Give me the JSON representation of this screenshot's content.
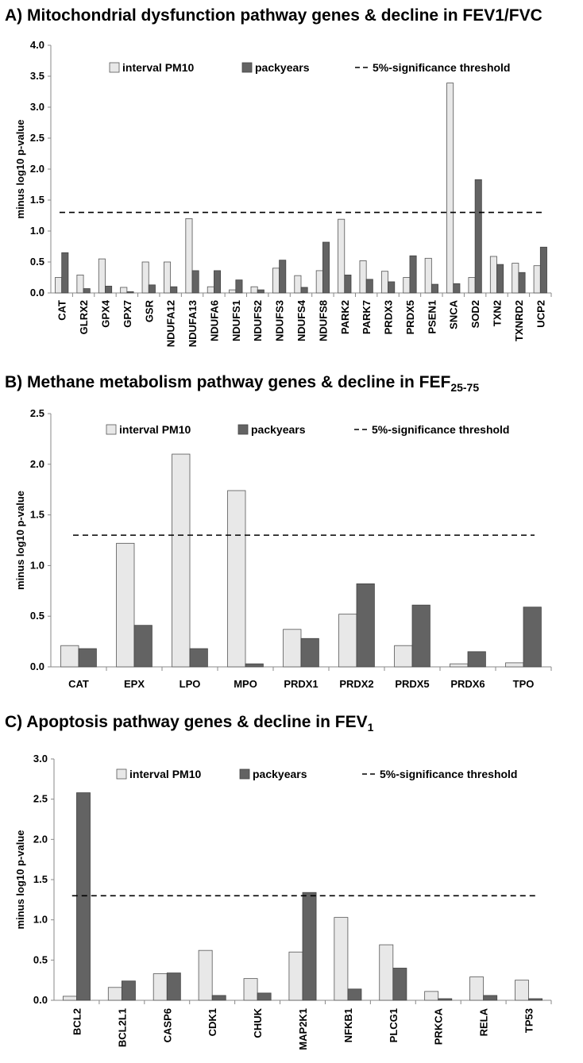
{
  "chart_data": [
    {
      "type": "bar",
      "panel": "A)",
      "title": "Mitochondrial dysfunction pathway genes & decline in FEV1/FVC",
      "ylabel": "minus log10 p-value",
      "ylim": [
        0,
        4.0
      ],
      "yticks": [
        "0.0",
        "0.5",
        "1.0",
        "1.5",
        "2.0",
        "2.5",
        "3.0",
        "3.5",
        "4.0"
      ],
      "grid": false,
      "legend": {
        "placement": "top",
        "entries": [
          "interval PM10",
          "packyears",
          "5%-significance threshold"
        ]
      },
      "threshold": 1.3,
      "categories": [
        "CAT",
        "GLRX2",
        "GPX4",
        "GPX7",
        "GSR",
        "NDUFA12",
        "NDUFA13",
        "NDUFA6",
        "NDUFS1",
        "NDUFS2",
        "NDUFS3",
        "NDUFS4",
        "NDUFS8",
        "PARK2",
        "PARK7",
        "PRDX3",
        "PRDX5",
        "PSEN1",
        "SNCA",
        "SOD2",
        "TXN2",
        "TXNRD2",
        "UCP2"
      ],
      "series": [
        {
          "name": "interval PM10",
          "color": "#e8e8e8",
          "values": [
            0.25,
            0.29,
            0.55,
            0.09,
            0.5,
            0.5,
            1.2,
            0.1,
            0.05,
            0.1,
            0.4,
            0.28,
            0.36,
            1.19,
            0.52,
            0.35,
            0.25,
            0.56,
            3.39,
            0.25,
            0.59,
            0.48,
            0.44
          ]
        },
        {
          "name": "packyears",
          "color": "#636363",
          "values": [
            0.65,
            0.07,
            0.11,
            0.02,
            0.13,
            0.1,
            0.36,
            0.36,
            0.21,
            0.05,
            0.53,
            0.09,
            0.82,
            0.29,
            0.22,
            0.18,
            0.6,
            0.14,
            0.15,
            1.83,
            0.46,
            0.33,
            0.74
          ]
        }
      ]
    },
    {
      "type": "bar",
      "panel": "B)",
      "title": "Methane metabolism pathway genes & decline in FEF",
      "title_sub": "25-75",
      "ylabel": "minus log10 p-value",
      "ylim": [
        0,
        2.5
      ],
      "yticks": [
        "0.0",
        "0.5",
        "1.0",
        "1.5",
        "2.0",
        "2.5"
      ],
      "grid": false,
      "legend": {
        "placement": "top",
        "entries": [
          "interval PM10",
          "packyears",
          "5%-significance threshold"
        ]
      },
      "threshold": 1.3,
      "categories": [
        "CAT",
        "EPX",
        "LPO",
        "MPO",
        "PRDX1",
        "PRDX2",
        "PRDX5",
        "PRDX6",
        "TPO"
      ],
      "series": [
        {
          "name": "interval PM10",
          "color": "#e8e8e8",
          "values": [
            0.21,
            1.22,
            2.1,
            1.74,
            0.37,
            0.52,
            0.21,
            0.03,
            0.04
          ]
        },
        {
          "name": "packyears",
          "color": "#636363",
          "values": [
            0.18,
            0.41,
            0.18,
            0.03,
            0.28,
            0.82,
            0.61,
            0.15,
            0.59
          ]
        }
      ]
    },
    {
      "type": "bar",
      "panel": "C)",
      "title": "Apoptosis pathway genes & decline in FEV",
      "title_sub": "1",
      "ylabel": "minus log10 p-value",
      "ylim": [
        0,
        3.0
      ],
      "yticks": [
        "0.0",
        "0.5",
        "1.0",
        "1.5",
        "2.0",
        "2.5",
        "3.0"
      ],
      "grid": false,
      "legend": {
        "placement": "top",
        "entries": [
          "interval PM10",
          "packyears",
          "5%-significance threshold"
        ]
      },
      "threshold": 1.3,
      "categories": [
        "BCL2",
        "BCL2L1",
        "CASP6",
        "CDK1",
        "CHUK",
        "MAP2K1",
        "NFKB1",
        "PLCG1",
        "PRKCA",
        "RELA",
        "TP53"
      ],
      "series": [
        {
          "name": "interval PM10",
          "color": "#e8e8e8",
          "values": [
            0.05,
            0.16,
            0.33,
            0.62,
            0.27,
            0.6,
            1.03,
            0.69,
            0.11,
            0.29,
            0.25
          ]
        },
        {
          "name": "packyears",
          "color": "#636363",
          "values": [
            2.58,
            0.24,
            0.34,
            0.06,
            0.09,
            1.34,
            0.14,
            0.4,
            0.02,
            0.06,
            0.02
          ]
        }
      ]
    }
  ]
}
